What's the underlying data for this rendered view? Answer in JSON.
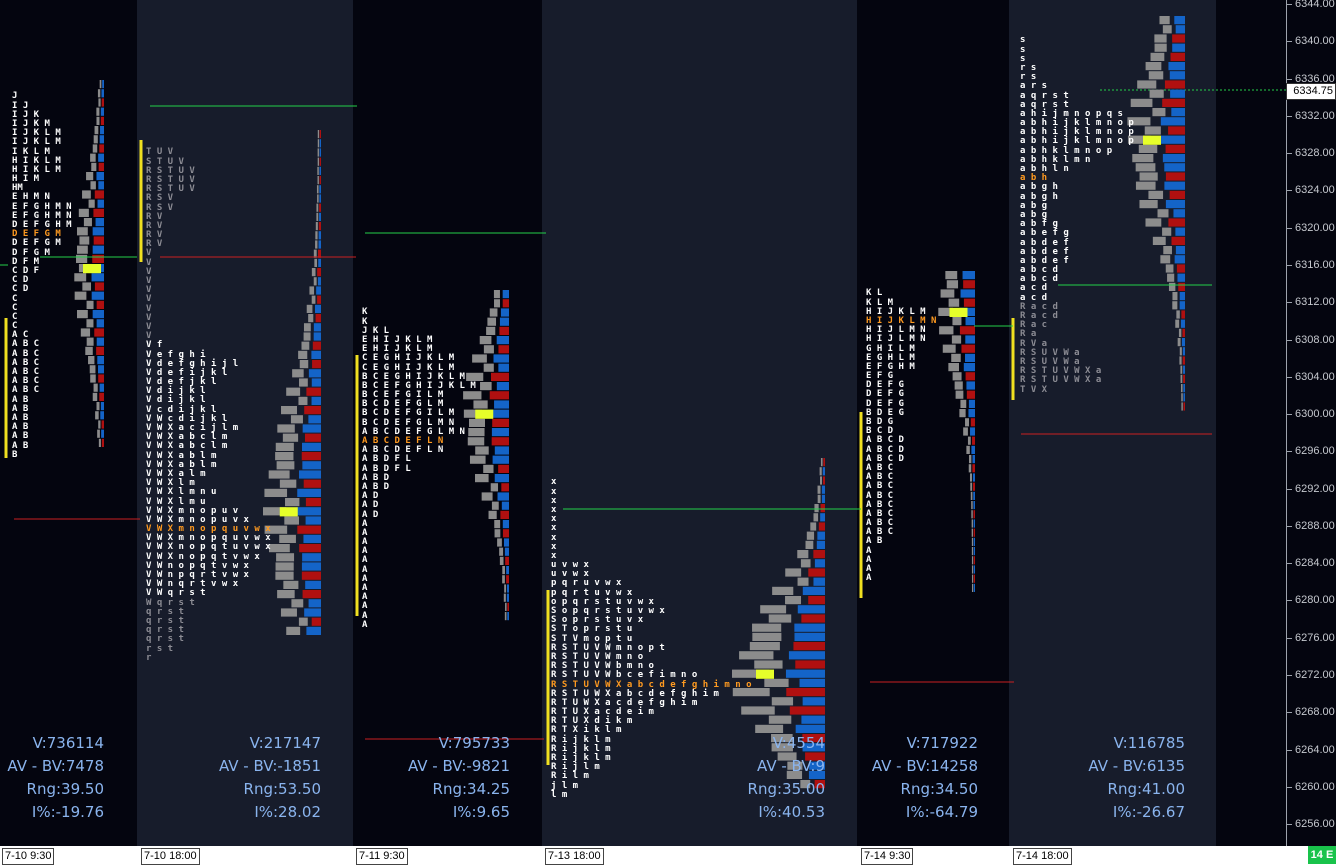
{
  "price_axis": {
    "labels": [
      "6344.00",
      "6340.00",
      "6336.00",
      "6332.00",
      "6328.00",
      "6324.00",
      "6320.00",
      "6316.00",
      "6312.00",
      "6308.00",
      "6304.00",
      "6300.00",
      "6296.00",
      "6292.00",
      "6288.00",
      "6284.00",
      "6280.00",
      "6276.00",
      "6272.00",
      "6268.00",
      "6264.00",
      "6260.00",
      "6256.00"
    ],
    "last_price": "6334.75"
  },
  "time_axis": {
    "labels": [
      "7-10  9:30",
      "7-10  18:00",
      "7-11  9:30",
      "7-13  18:00",
      "7-14  9:30",
      "7-14  18:00"
    ],
    "corner_badge": "14 E"
  },
  "colors": {
    "buy": "#1464c8",
    "sell": "#b01010",
    "neutral": "#8c8c8c",
    "poc": "#e6ff2a",
    "va_line": "#f0e020",
    "ib_line": "#23d04a",
    "close_line": "#c82020",
    "stats": "#8ab4ee",
    "letters_white": "#ffffff",
    "letters_grey": "#8c8c94",
    "letters_orange": "#ff9a20"
  },
  "sessions": [
    {
      "tpo_rows": [
        "J",
        "I J",
        "I J K",
        "I J K M",
        "I J K L M",
        "I J K L M",
        "I K L M",
        "H I K L M",
        "H I K L M",
        "H I M",
        "HM",
        "E H M N",
        "E F G H M N",
        "E F G H M N",
        "D E F G H M",
        "D E F G M",
        "D E F G M",
        "D F G M",
        "D F M",
        "C D F",
        "C D",
        "C D",
        "C",
        "C",
        "C",
        "C",
        "A C",
        "A B C",
        "A B C",
        "A B C",
        "A B C",
        "A B C",
        "A B C",
        "A B",
        "A B",
        "A B",
        "A B",
        "A B",
        "A B",
        "B"
      ],
      "stats": {
        "volume": "V:736114",
        "delta": "AV - BV:7478",
        "range": "Rng:39.50",
        "ib_pct": "I%:-19.76"
      }
    },
    {
      "tpo_rows": [
        "T U V",
        "S T U V",
        "R S T U V",
        "R S T U V",
        "R S T U V",
        "R S V",
        "R S V",
        "R V",
        "R V",
        "R V",
        "R V",
        "V",
        "V",
        "V",
        "V",
        "V",
        "V",
        "V",
        "V",
        "V",
        "V",
        "V f",
        "V e f g h i",
        "V d e f g h i j l",
        "V d e f i j k l",
        "V d e f j k l",
        "V d i j k l",
        "V d i j k l",
        "V c d i j k l",
        "V W c d i j k l",
        "V W X a c i j l m",
        "V W X a b c l m",
        "V W X a b c l m",
        "V W X a b l m",
        "V W X a b l m",
        "V W X a l m",
        "V W X l m",
        "V W X l m n u",
        "V W X l m u",
        "V W X m n o p u v",
        "V W X m n o p u v x",
        "V W X m n o p q u v w x",
        "V W X m n o p q u v w x",
        "V W X n o p q t u v w x",
        "V W X n o p q t v w x",
        "V W n o p q t v w x",
        "V W n p q r t v w x",
        "V W n q r t v w x",
        "V W q r s t",
        "W q r s t",
        "q r s t",
        "q r s t",
        "q r s t",
        "q r s t",
        "r s t",
        "r"
      ],
      "stats": {
        "volume": "V:217147",
        "delta": "AV - BV:-1851",
        "range": "Rng:53.50",
        "ib_pct": "I%:28.02"
      }
    },
    {
      "tpo_rows": [
        "K",
        "K",
        "J K L",
        "E H I J K L M",
        "E H I J K L M",
        "C E G H I J K L M",
        "C E G H I J K L M",
        "B C E G H I J K L M",
        "B C E F G H I J K L M",
        "B C E F G I L M",
        "B C D E F G L M",
        "B C D E F G I L M",
        "B C D E F G L M N",
        "A B C D E F G L M N",
        "A B C D E F L N",
        "A B C D E F L N",
        "A B D F L",
        "A B D F L",
        "A B D",
        "A B D",
        "A D",
        "A D",
        "A D",
        "A",
        "A",
        "A",
        "A",
        "A",
        "A",
        "A",
        "A",
        "A",
        "A",
        "A",
        "A"
      ],
      "stats": {
        "volume": "V:795733",
        "delta": "AV - BV:-9821",
        "range": "Rng:34.25",
        "ib_pct": "I%:9.65"
      }
    },
    {
      "tpo_rows": [
        "x",
        "x",
        "x",
        "x",
        "x",
        "x",
        "x",
        "x",
        "x",
        "u v w x",
        "u v w x",
        "p q r u v w x",
        "p q r t u v w x",
        "o p q r s t u v w x",
        "S o p q r s t u v w x",
        "S o p r s t u v x",
        "S T o p r s t u",
        "S T V m o p t u",
        "R S T U V W m n o p t",
        "R S T U V W m n o",
        "R S T U V W b m n o",
        "R S T U V W b c e f i m n o",
        "R S T U V W X a b c d e f g h i m n o",
        "R S T U W X a b c d e f g h i m",
        "R T U W X a c d e f g h i m",
        "R T U X a c d e i m",
        "R T U X d i k m",
        "R T X i k l m",
        "R i j k l m",
        "R i j k l m",
        "R i j k l m",
        "R i j l m",
        "R i l m",
        "j l m",
        "l m"
      ],
      "stats": {
        "volume": "V:4554",
        "delta": "AV - BV:9",
        "range": "Rng:35.00",
        "ib_pct": "I%:40.53"
      }
    },
    {
      "tpo_rows": [
        "K L",
        "K L M",
        "H I J K L M",
        "H I J K L M N",
        "H I J L M N",
        "H I J L M N",
        "G H I L M",
        "E G H L M",
        "E F G H M",
        "E F G",
        "D E F G",
        "D E F G",
        "D E F G",
        "B D E G",
        "B D G",
        "B C D",
        "A B C D",
        "A B C D",
        "A B C D",
        "A B C",
        "A B C",
        "A B C",
        "A B C",
        "A B C",
        "A B C",
        "A B C",
        "A B C",
        "A B",
        "A",
        "A",
        "A",
        "A"
      ],
      "stats": {
        "volume": "V:717922",
        "delta": "AV - BV:14258",
        "range": "Rng:34.50",
        "ib_pct": "I%:-64.79"
      }
    },
    {
      "tpo_rows": [
        "s",
        "s",
        "s",
        "r s",
        "r s",
        "a r s",
        "a q r s t",
        "a q r s t",
        "a h i j m n o p q s",
        "a b h i j k l m n o p",
        "a b h i j k l m n o p",
        "a b h i j k l m n o p",
        "a b h k l m n o p",
        "a b h k l m n",
        "a b h l n",
        "a b h",
        "a b g h",
        "a b g h",
        "a b g",
        "a b g",
        "a b f g",
        "a b e f g",
        "a b d e f",
        "a b d e f",
        "a b d e f",
        "a b c d",
        "a b c d",
        "a c d",
        "a c d",
        "R a c d",
        "R a c d",
        "R a c",
        "R a",
        "R V a",
        "R S U V W a",
        "R S U V W a",
        "R S T U V W X a",
        "R S T U V W X a",
        "T V X"
      ],
      "stats": {
        "volume": "V:116785",
        "delta": "AV - BV:6135",
        "range": "Rng:41.00",
        "ib_pct": "I%:-26.67"
      }
    }
  ]
}
